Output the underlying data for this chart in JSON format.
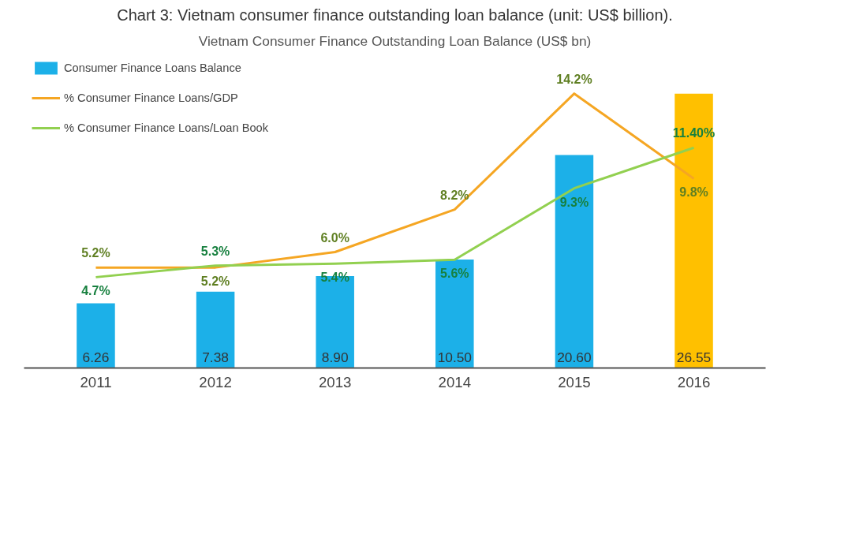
{
  "chart_data": {
    "type": "bar",
    "title": "Vietnam Consumer Finance Outstanding Loan Balance (US$ bn)",
    "annotations": [
      "Chart 3: Vietnam consumer finance outstanding loan balance (unit: US$ billion)."
    ],
    "categories": [
      "2011",
      "2012",
      "2013",
      "2014",
      "2015",
      "2016"
    ],
    "series": [
      {
        "name": "Consumer Finance Loans Balance",
        "colors": [
          "#1cb0e8",
          "#1cb0e8",
          "#1cb0e8",
          "#1cb0e8",
          "#1cb0e8",
          "#ffc000"
        ],
        "color": "#1cb0e8",
        "values": [
          6.26,
          7.38,
          8.9,
          10.5,
          20.6,
          26.55
        ],
        "value_labels": [
          "6.26",
          "7.38",
          "8.90",
          "10.50",
          "20.60",
          "26.55"
        ]
      },
      {
        "name": "% Consumer Finance Loans/GDP",
        "type": "line",
        "axis": "y2",
        "color": "#f5a623",
        "values": [
          5.2,
          5.2,
          6.0,
          8.2,
          14.2,
          9.8
        ],
        "value_labels": [
          "5.2%",
          "5.2%",
          "6.0%",
          "8.2%",
          "14.2%",
          "9.8%"
        ]
      },
      {
        "name": "% Consumer Finance Loans/Loan Book",
        "type": "line",
        "axis": "y2",
        "color": "#92d050",
        "values": [
          4.7,
          5.3,
          5.4,
          5.6,
          9.3,
          11.4
        ],
        "value_labels": [
          "4.7%",
          "5.3%",
          "5.4%",
          "5.6%",
          "9.3%",
          "11.40%"
        ]
      }
    ],
    "legend": "top left"
  }
}
